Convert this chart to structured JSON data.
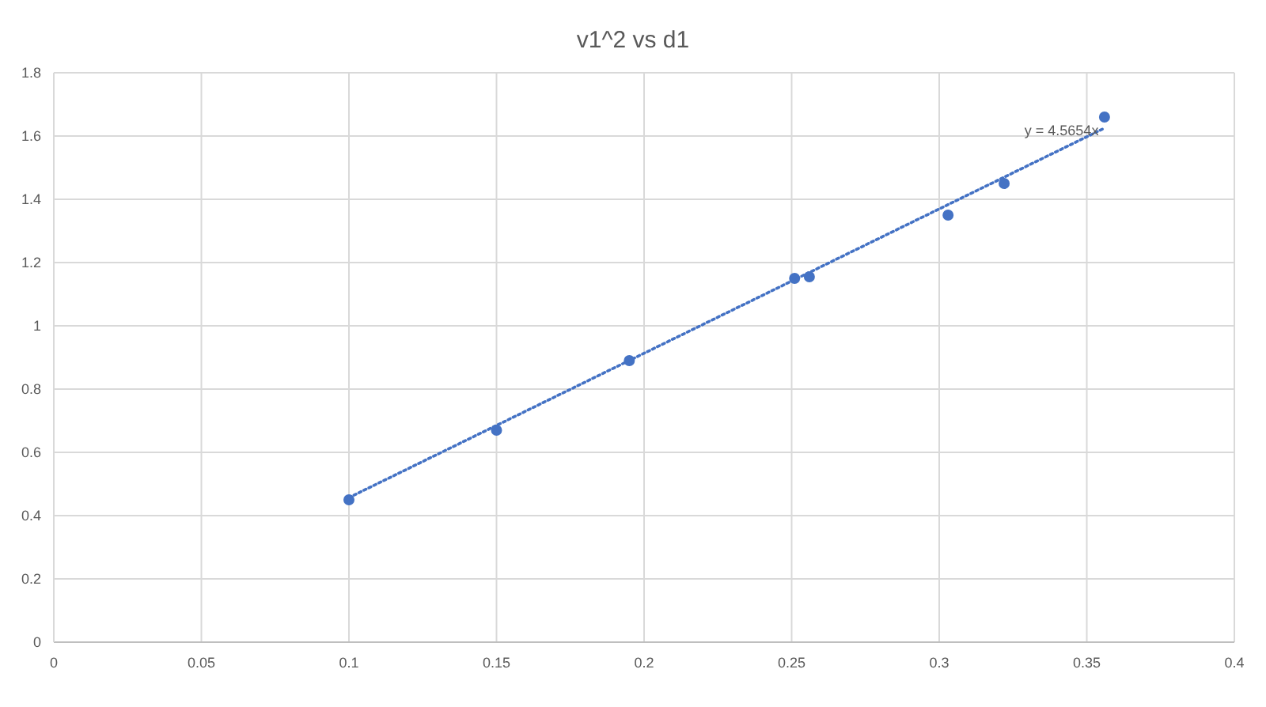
{
  "chart_data": {
    "type": "scatter",
    "title": "v1^2 vs d1",
    "series": [
      {
        "color": "#4472c4",
        "x": [
          0.1,
          0.15,
          0.195,
          0.251,
          0.256,
          0.303,
          0.322,
          0.356
        ],
        "values": [
          0.45,
          0.67,
          0.89,
          1.15,
          1.155,
          1.35,
          1.45,
          1.66
        ]
      },
      {
        "type": "line",
        "color": "#4472c4",
        "x": [
          0.1,
          0.356
        ],
        "values": [
          0.457,
          1.625
        ],
        "line_style": "dotted"
      }
    ],
    "annotations": [
      "y = 4.5654x"
    ],
    "xlim": [
      0,
      0.4
    ],
    "xticks": [
      0,
      0.05,
      0.1,
      0.15,
      0.2,
      0.25,
      0.3,
      0.35,
      0.4
    ],
    "ylim": [
      0,
      1.8
    ],
    "yticks": [
      0,
      0.2,
      0.4,
      0.6,
      0.8,
      1,
      1.2,
      1.4,
      1.6,
      1.8
    ],
    "grid": true
  }
}
